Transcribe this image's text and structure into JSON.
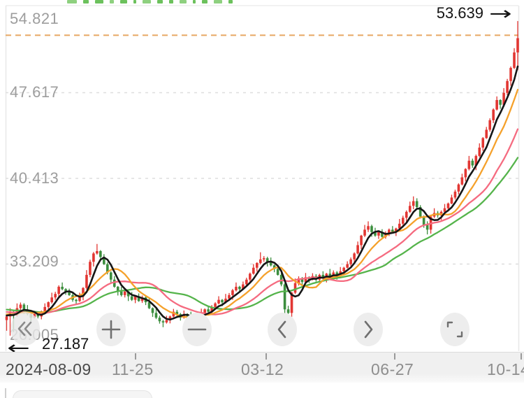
{
  "chart": {
    "price_markers": {
      "high_label": "53.639",
      "high_arrow": "→",
      "low_label": "27.187",
      "low_arrow": "←"
    },
    "clipped_indicator_sliver_color": "#6cc15c"
  },
  "toolbar": {
    "buttons": [
      {
        "id": "rewind",
        "icon": "double-chevron-left"
      },
      {
        "id": "zoom-in",
        "icon": "plus"
      },
      {
        "id": "zoom-out",
        "icon": "minus"
      },
      {
        "id": "pan-left",
        "icon": "chevron-left"
      },
      {
        "id": "pan-right",
        "icon": "chevron-right"
      },
      {
        "id": "fullscreen",
        "icon": "expand-corners"
      }
    ]
  },
  "chart_data": {
    "type": "candlestick",
    "title": "",
    "y_tick_labels": [
      "54.821",
      "47.617",
      "40.413",
      "33.209",
      "26.005"
    ],
    "y_range": [
      26.005,
      54.821
    ],
    "x_tick_labels": [
      "2024-08-09",
      "11-25",
      "03-12",
      "06-27",
      "10-14"
    ],
    "price_high_marker": 53.639,
    "price_low_marker": 27.187,
    "dashed_reference_level_est": 52.45,
    "first_open": 28.5,
    "closes": [
      28.8,
      29.2,
      28.9,
      29.5,
      29.8,
      29.4,
      29.0,
      28.7,
      29.0,
      28.8,
      29.2,
      29.6,
      30.0,
      30.4,
      30.7,
      31.3,
      31.1,
      30.9,
      30.6,
      30.2,
      30.1,
      30.5,
      31.2,
      32.3,
      33.4,
      34.1,
      34.3,
      33.8,
      33.2,
      32.5,
      31.9,
      31.3,
      30.9,
      30.6,
      30.9,
      30.5,
      30.2,
      30.5,
      30.1,
      30.4,
      30.0,
      29.5,
      29.1,
      28.7,
      28.4,
      28.3,
      28.5,
      28.8,
      29.2,
      29.0,
      28.7,
      29.0,
      28.8,
      28.6,
      28.9,
      28.7,
      29.1,
      29.4,
      29.2,
      29.6,
      29.9,
      30.2,
      30.0,
      30.3,
      30.6,
      31.0,
      31.3,
      31.1,
      31.5,
      31.9,
      32.4,
      32.9,
      33.3,
      33.6,
      33.7,
      33.4,
      33.1,
      32.8,
      32.3,
      31.5,
      29.4,
      29.1,
      30.8,
      31.6,
      32.0,
      31.7,
      32.1,
      31.9,
      32.2,
      31.9,
      32.3,
      32.0,
      32.4,
      32.1,
      32.5,
      32.3,
      32.6,
      32.9,
      33.2,
      33.6,
      34.1,
      34.8,
      35.6,
      36.1,
      36.4,
      35.9,
      35.6,
      35.9,
      35.5,
      35.8,
      36.1,
      35.9,
      36.2,
      36.6,
      37.1,
      37.6,
      38.1,
      38.5,
      38.0,
      37.2,
      36.5,
      36.1,
      37.2,
      37.5,
      37.3,
      37.6,
      37.9,
      38.3,
      38.8,
      39.3,
      39.9,
      40.5,
      41.2,
      41.9,
      41.5,
      42.3,
      43.0,
      43.8,
      44.5,
      45.3,
      46.2,
      47.0,
      46.6,
      47.6,
      48.6,
      49.7,
      51.0,
      52.2
    ],
    "wick_high_cycle": [
      0.12,
      0.38,
      0.08,
      0.5,
      0.22,
      0.15,
      0.45,
      0.1,
      0.3,
      0.2
    ],
    "wick_low_cycle": [
      0.3,
      0.1,
      0.42,
      0.15,
      0.25,
      0.5,
      0.12,
      0.35,
      0.08,
      0.2
    ],
    "wick_overrides": {
      "0": {
        "low": 27.6
      },
      "1": {
        "low": 27.187
      },
      "2": {
        "low": 27.5
      },
      "26": {
        "high": 34.9
      },
      "73": {
        "high": 34.2
      },
      "80": {
        "low": 28.3
      },
      "104": {
        "high": 36.8
      },
      "117": {
        "high": 38.9
      },
      "121": {
        "low": 35.7
      },
      "147": {
        "high": 53.639,
        "low": 49.5
      }
    },
    "moving_averages": [
      {
        "period": 30,
        "color": "#55b44b"
      },
      {
        "period": 20,
        "color": "#f56b80"
      },
      {
        "period": 10,
        "color": "#f5a12b"
      },
      {
        "period": 5,
        "color": "#161616"
      }
    ],
    "colors": {
      "candle_up": "#e23632",
      "candle_down": "#3c8e3e",
      "grid_dashed": "#dedede",
      "reference_dashed": "#e7a763",
      "axis_label": "#9d9d9d",
      "marker_text": "#141414"
    },
    "legend_position": "top-left-clipped",
    "grid": true
  }
}
